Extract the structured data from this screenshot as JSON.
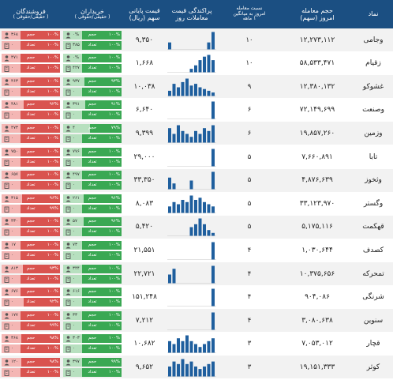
{
  "header": {
    "name": "نماد",
    "volume": {
      "title": "حجم معامله",
      "sub": "امروز (سهم)"
    },
    "ratio": {
      "title": "نسبت معامله",
      "sub1": "امروز به میانگین",
      "sub2": "۱ ماهه"
    },
    "hist": {
      "title": "پراکندگی قیمت",
      "sub": "معاملات روز"
    },
    "price": {
      "title": "قیمت پایانی",
      "sub": "سهم (ریال)"
    },
    "buyers": {
      "title": "خریداران",
      "sub": "( حقیقی/حقوقی )"
    },
    "sellers": {
      "title": "فروشندگان",
      "sub": "( حقیقی/حقوقی )"
    }
  },
  "labels": {
    "volume": "حجم",
    "count": "تعداد"
  },
  "colors": {
    "header": "#1b4f82",
    "buy": "#3aa853",
    "buy_light": "#b7e0bf",
    "sell": "#d9534f",
    "sell_light": "#f4b6b4",
    "hist": "#1f5f9e"
  },
  "rows": [
    {
      "name": "وجامی",
      "volume": "۱۲,۲۷۳,۱۱۲",
      "ratio": "۱۰",
      "price": "۹,۳۵۰",
      "hist": [
        2,
        0,
        0,
        0,
        0,
        0,
        0,
        0,
        0,
        2,
        5
      ],
      "buy": {
        "vol_a": "۱۰۰%",
        "vol_b": "۰%",
        "cnt_a": "۱۰۰%",
        "cnt_b": "۳۸۵",
        "vol": 1.0,
        "cnt": 1.0
      },
      "sell": {
        "vol_a": "۱۰۰%",
        "vol_b": "۳۶۸",
        "cnt_a": "۱۰۰%",
        "cnt_b": "۰",
        "vol": 1.0,
        "cnt": 1.0
      }
    },
    {
      "name": "زقیام",
      "volume": "۵۸,۵۳۳,۴۷۱",
      "ratio": "۱۰",
      "price": "۱,۶۶۸",
      "hist": [
        0,
        0,
        0,
        0,
        0,
        2,
        4,
        7,
        9,
        10,
        7
      ],
      "buy": {
        "vol_a": "۱۰۰%",
        "vol_b": "۰%",
        "cnt_a": "۱۰۰%",
        "cnt_b": "۴۲۷",
        "vol": 1.0,
        "cnt": 1.0
      },
      "sell": {
        "vol_a": "۱۰۰%",
        "vol_b": "۴۷۱",
        "cnt_a": "۱۰۰%",
        "cnt_b": "۰",
        "vol": 1.0,
        "cnt": 1.0
      }
    },
    {
      "name": "غشوکو",
      "volume": "۱۲,۳۸۰,۱۳۲",
      "ratio": "۹",
      "price": "۱۰,۰۳۸",
      "hist": [
        3,
        7,
        5,
        8,
        10,
        6,
        7,
        5,
        4,
        3,
        2
      ],
      "buy": {
        "vol_a": "۹۳%",
        "vol_b": "۹۳۷",
        "cnt_a": "۱۰۰%",
        "cnt_b": "۰",
        "vol": 0.93,
        "cnt": 1.0
      },
      "sell": {
        "vol_a": "۱۰۰%",
        "vol_b": "۴۶۳",
        "cnt_a": "۱۰۰%",
        "cnt_b": "۰",
        "vol": 1.0,
        "cnt": 1.0
      }
    },
    {
      "name": "وصنعت",
      "volume": "۷۲,۱۴۹,۶۹۹",
      "ratio": "۶",
      "price": "۶,۶۴۰",
      "hist": [
        0,
        0,
        0,
        0,
        0,
        0,
        0,
        0,
        0,
        0,
        10
      ],
      "buy": {
        "vol_a": "۹۱%",
        "vol_b": "۳۹۱",
        "cnt_a": "۱۰۰%",
        "cnt_b": "۰",
        "vol": 0.91,
        "cnt": 1.0
      },
      "sell": {
        "vol_a": "۹۲%",
        "vol_b": "۴۸۱",
        "cnt_a": "۱۰۰%",
        "cnt_b": "۰",
        "vol": 0.92,
        "cnt": 1.0
      }
    },
    {
      "name": "وزمین",
      "volume": "۱۹,۸۵۷,۲۶۰",
      "ratio": "۶",
      "price": "۹,۳۹۹",
      "hist": [
        5,
        3,
        6,
        4,
        3,
        2,
        4,
        3,
        5,
        4,
        6
      ],
      "buy": {
        "vol_a": "۷۹%",
        "vol_b": "۴",
        "cnt_a": "۱۰۰%",
        "cnt_b": "۰",
        "vol": 0.79,
        "cnt": 1.0
      },
      "sell": {
        "vol_a": "۱۰۰%",
        "vol_b": "۴۷۳",
        "cnt_a": "۱۰۰%",
        "cnt_b": "۰",
        "vol": 1.0,
        "cnt": 1.0
      }
    },
    {
      "name": "تابا",
      "volume": "۷,۶۶۰,۸۹۱",
      "ratio": "۵",
      "price": "۲۹,۰۰۰",
      "hist": [
        0,
        0,
        0,
        0,
        0,
        0,
        0,
        0,
        0,
        0,
        8
      ],
      "buy": {
        "vol_a": "۱۰۰%",
        "vol_b": "۷۷۶",
        "cnt_a": "۱۰۰%",
        "cnt_b": "۰",
        "vol": 1.0,
        "cnt": 1.0
      },
      "sell": {
        "vol_a": "۱۰۰%",
        "vol_b": "۷۵۰",
        "cnt_a": "۱۰۰%",
        "cnt_b": "۰",
        "vol": 1.0,
        "cnt": 1.0
      }
    },
    {
      "name": "وثخوز",
      "volume": "۴,۸۷۶,۶۳۹",
      "ratio": "۵",
      "price": "۳۳,۳۵۰",
      "hist": [
        4,
        2,
        0,
        0,
        0,
        3,
        0,
        0,
        0,
        0,
        6
      ],
      "buy": {
        "vol_a": "۱۰۰%",
        "vol_b": "۴۹۷",
        "cnt_a": "۱۰۰%",
        "cnt_b": "۰",
        "vol": 1.0,
        "cnt": 1.0
      },
      "sell": {
        "vol_a": "۱۰۰%",
        "vol_b": "۶۵۷",
        "cnt_a": "۱۰۰%",
        "cnt_b": "۰",
        "vol": 1.0,
        "cnt": 1.0
      }
    },
    {
      "name": "وگستر",
      "volume": "۳۳,۱۲۳,۹۷۰",
      "ratio": "۵",
      "price": "۸,۰۸۳",
      "hist": [
        3,
        5,
        4,
        6,
        5,
        8,
        6,
        7,
        5,
        4,
        3
      ],
      "buy": {
        "vol_a": "۹۶%",
        "vol_b": "۲۶۱",
        "cnt_a": "۱۰۰%",
        "cnt_b": "۰",
        "vol": 0.96,
        "cnt": 1.0
      },
      "sell": {
        "vol_a": "۹۶%",
        "vol_b": "۳۱۵",
        "cnt_a": "۹۹%",
        "cnt_b": "۰",
        "vol": 0.96,
        "cnt": 0.99
      }
    },
    {
      "name": "قهکمت",
      "volume": "۵,۱۷۵,۱۱۶",
      "ratio": "۵",
      "price": "۵,۴۲۰",
      "hist": [
        0,
        0,
        0,
        0,
        0,
        3,
        4,
        6,
        4,
        2,
        1
      ],
      "buy": {
        "vol_a": "۹۶%",
        "vol_b": "۵۷",
        "cnt_a": "۱۰۰%",
        "cnt_b": "۰",
        "vol": 0.96,
        "cnt": 1.0
      },
      "sell": {
        "vol_a": "۱۰۰%",
        "vol_b": "۴۳۰",
        "cnt_a": "۱۰۰%",
        "cnt_b": "۰",
        "vol": 1.0,
        "cnt": 1.0
      }
    },
    {
      "name": "کصدف",
      "volume": "۱,۰۳۰,۶۴۴",
      "ratio": "۴",
      "price": "۲۱,۵۵۱",
      "hist": [
        0,
        0,
        0,
        0,
        0,
        0,
        0,
        0,
        0,
        0,
        7
      ],
      "buy": {
        "vol_a": "۱۰۰%",
        "vol_b": "۷۳",
        "cnt_a": "۱۰۰%",
        "cnt_b": "۰",
        "vol": 1.0,
        "cnt": 1.0
      },
      "sell": {
        "vol_a": "۱۰۰%",
        "vol_b": "۱۷",
        "cnt_a": "۱۰۰%",
        "cnt_b": "۰",
        "vol": 1.0,
        "cnt": 1.0
      }
    },
    {
      "name": "تمحرکه",
      "volume": "۱۰,۳۷۵,۶۵۶",
      "ratio": "۴",
      "price": "۲۲,۷۲۱",
      "hist": [
        3,
        5,
        0,
        0,
        0,
        0,
        0,
        0,
        0,
        0,
        6
      ],
      "buy": {
        "vol_a": "۱۰۰%",
        "vol_b": "۳۴۴",
        "cnt_a": "۱۰۰%",
        "cnt_b": "۰",
        "vol": 1.0,
        "cnt": 1.0
      },
      "sell": {
        "vol_a": "۹۳%",
        "vol_b": "۸۱۳",
        "cnt_a": "۱۰۰%",
        "cnt_b": "۰",
        "vol": 0.93,
        "cnt": 1.0
      }
    },
    {
      "name": "شرنگی",
      "volume": "۹۰۴,۰۸۶",
      "ratio": "۴",
      "price": "۱۵۱,۲۴۸",
      "hist": [
        0,
        0,
        0,
        0,
        0,
        0,
        0,
        0,
        0,
        0,
        7
      ],
      "buy": {
        "vol_a": "۱۰۰%",
        "vol_b": "۶۱۶",
        "cnt_a": "۱۰۰%",
        "cnt_b": "۰",
        "vol": 1.0,
        "cnt": 1.0
      },
      "sell": {
        "vol_a": "۱۰۰%",
        "vol_b": "۶۷۶",
        "cnt_a": "۹۲%",
        "cnt_b": "۰",
        "vol": 1.0,
        "cnt": 0.92
      }
    },
    {
      "name": "سنوین",
      "volume": "۳,۰۸۰,۶۳۸",
      "ratio": "۴",
      "price": "۷,۲۱۲",
      "hist": [
        0,
        0,
        0,
        0,
        0,
        0,
        0,
        0,
        0,
        0,
        6
      ],
      "buy": {
        "vol_a": "۱۰۰%",
        "vol_b": "۳۳",
        "cnt_a": "۱۰۰%",
        "cnt_b": "۰",
        "vol": 1.0,
        "cnt": 1.0
      },
      "sell": {
        "vol_a": "۱۰۰%",
        "vol_b": "۱۷۷",
        "cnt_a": "۹۹%",
        "cnt_b": "۰",
        "vol": 1.0,
        "cnt": 0.99
      }
    },
    {
      "name": "قچار",
      "volume": "۷,۰۵۳,۰۱۲",
      "ratio": "۳",
      "price": "۱۰,۶۸۲",
      "hist": [
        4,
        3,
        5,
        4,
        6,
        4,
        3,
        2,
        3,
        4,
        5
      ],
      "buy": {
        "vol_a": "۱۰۰%",
        "vol_b": "۳۰۳",
        "cnt_a": "۱۰۰%",
        "cnt_b": "۰",
        "vol": 1.0,
        "cnt": 1.0
      },
      "sell": {
        "vol_a": "۹۸%",
        "vol_b": "۳۶۸",
        "cnt_a": "۱۰۰%",
        "cnt_b": "۰",
        "vol": 0.98,
        "cnt": 1.0
      }
    },
    {
      "name": "کوثر",
      "volume": "۱۹,۱۵۱,۳۳۳",
      "ratio": "۳",
      "price": "۹,۶۵۲",
      "hist": [
        4,
        6,
        5,
        7,
        5,
        6,
        4,
        3,
        4,
        5,
        6
      ],
      "buy": {
        "vol_a": "۹۹%",
        "vol_b": "۳۹۷",
        "cnt_a": "۱۰۰%",
        "cnt_b": "۰",
        "vol": 0.99,
        "cnt": 1.0
      },
      "sell": {
        "vol_a": "۹۸%",
        "vol_b": "۱۲۰",
        "cnt_a": "۱۰۰%",
        "cnt_b": "۰",
        "vol": 0.98,
        "cnt": 1.0
      }
    }
  ]
}
